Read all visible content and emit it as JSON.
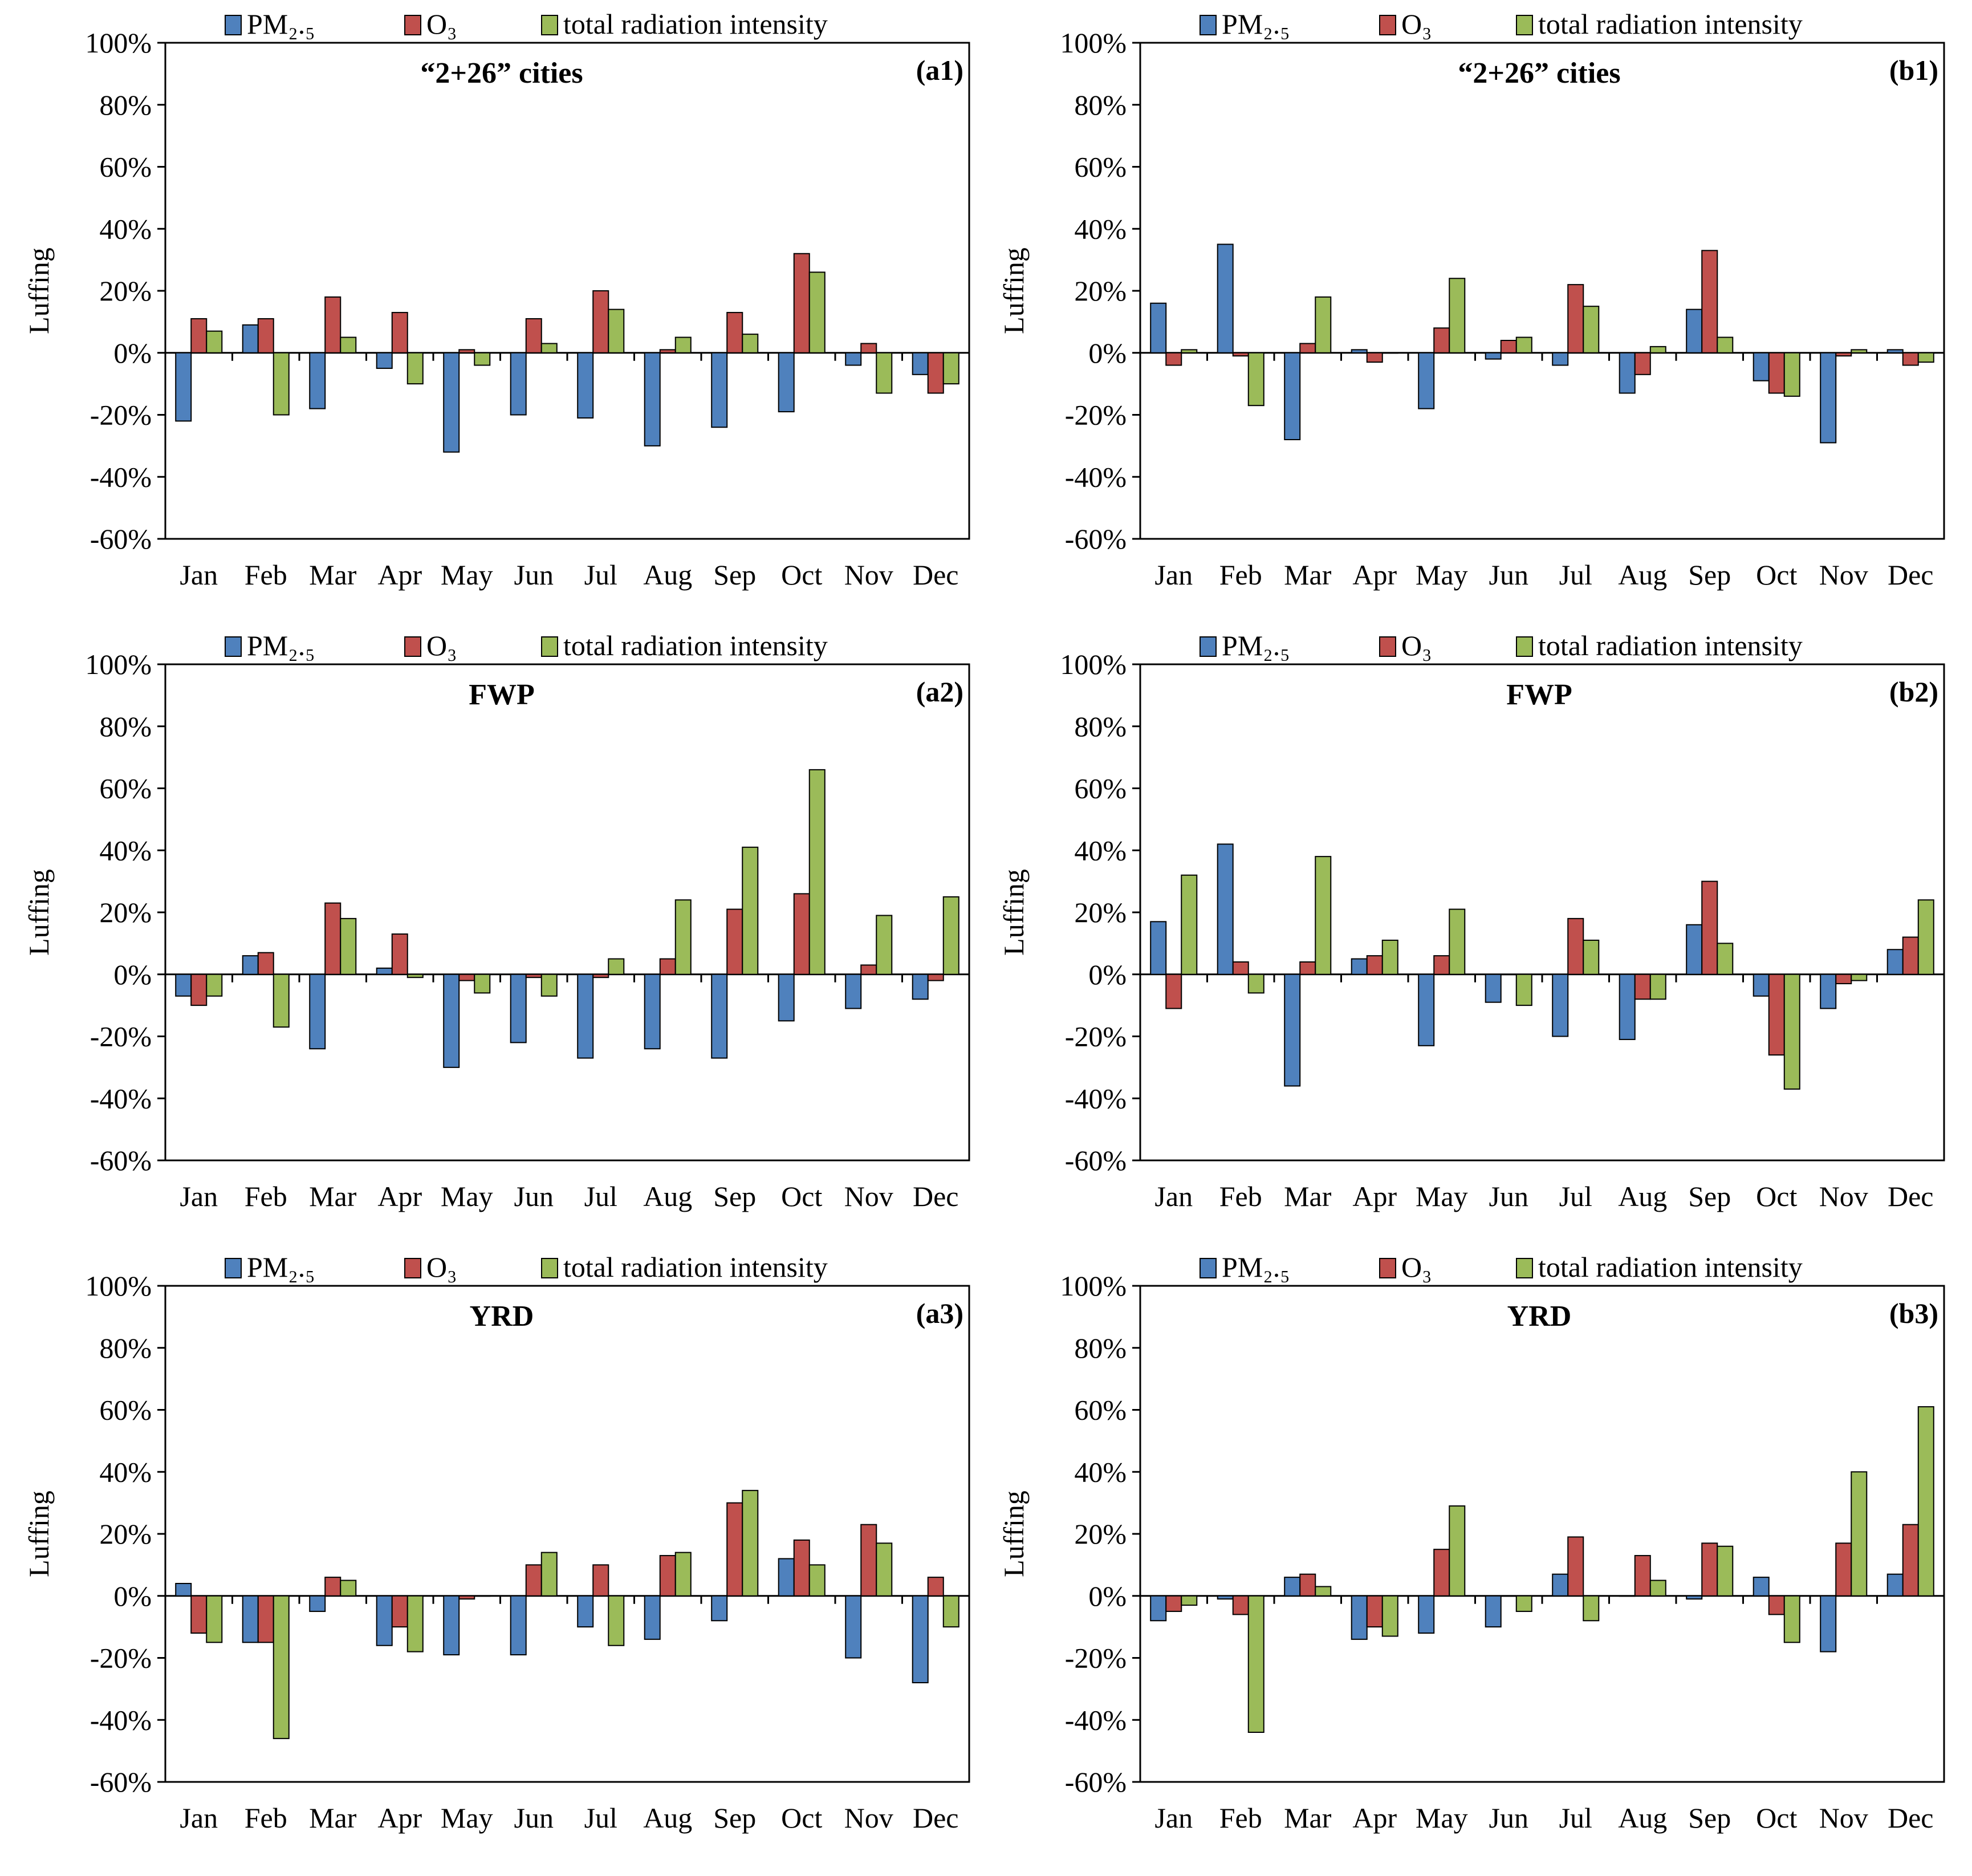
{
  "chart_data": [
    {
      "type": "bar",
      "panel": "(a1)",
      "title": "“2+26” cities",
      "xlabel": "",
      "ylabel": "Luffing",
      "ylim": [
        -60,
        100
      ],
      "y_tick_labels": [
        "100%",
        "80%",
        "60%",
        "40%",
        "20%",
        "0%",
        "-20%",
        "-40%",
        "-60%"
      ],
      "legend_position": "top",
      "categories": [
        "Jan",
        "Feb",
        "Mar",
        "Apr",
        "May",
        "Jun",
        "Jul",
        "Aug",
        "Sep",
        "Oct",
        "Nov",
        "Dec"
      ],
      "series": [
        {
          "name": "PM₂.₅",
          "color": "#4F81BD",
          "values": [
            -22,
            9,
            -18,
            -5,
            -32,
            -20,
            -21,
            -30,
            -24,
            -19,
            -4,
            -7
          ]
        },
        {
          "name": "O₃",
          "color": "#C0504D",
          "values": [
            11,
            11,
            18,
            13,
            1,
            11,
            20,
            1,
            13,
            32,
            3,
            -13
          ]
        },
        {
          "name": "total radiation intensity",
          "color": "#9BBB59",
          "values": [
            7,
            -20,
            5,
            -10,
            -4,
            3,
            14,
            5,
            6,
            26,
            -13,
            -10
          ]
        }
      ]
    },
    {
      "type": "bar",
      "panel": "(b1)",
      "title": "“2+26” cities",
      "xlabel": "",
      "ylabel": "Luffing",
      "ylim": [
        -60,
        100
      ],
      "y_tick_labels": [
        "100%",
        "80%",
        "60%",
        "40%",
        "20%",
        "0%",
        "-20%",
        "-40%",
        "-60%"
      ],
      "legend_position": "top",
      "categories": [
        "Jan",
        "Feb",
        "Mar",
        "Apr",
        "May",
        "Jun",
        "Jul",
        "Aug",
        "Sep",
        "Oct",
        "Nov",
        "Dec"
      ],
      "series": [
        {
          "name": "PM₂.₅",
          "color": "#4F81BD",
          "values": [
            16,
            35,
            -28,
            1,
            -18,
            -2,
            -4,
            -13,
            14,
            -9,
            -29,
            1
          ]
        },
        {
          "name": "O₃",
          "color": "#C0504D",
          "values": [
            -4,
            -1,
            3,
            -3,
            8,
            4,
            22,
            -7,
            33,
            -13,
            -1,
            -4
          ]
        },
        {
          "name": "total radiation intensity",
          "color": "#9BBB59",
          "values": [
            1,
            -17,
            18,
            0,
            24,
            5,
            15,
            2,
            5,
            -14,
            1,
            -3
          ]
        }
      ]
    },
    {
      "type": "bar",
      "panel": "(a2)",
      "title": "FWP",
      "xlabel": "",
      "ylabel": "Luffing",
      "ylim": [
        -60,
        100
      ],
      "y_tick_labels": [
        "100%",
        "80%",
        "60%",
        "40%",
        "20%",
        "0%",
        "-20%",
        "-40%",
        "-60%"
      ],
      "legend_position": "top",
      "categories": [
        "Jan",
        "Feb",
        "Mar",
        "Apr",
        "May",
        "Jun",
        "Jul",
        "Aug",
        "Sep",
        "Oct",
        "Nov",
        "Dec"
      ],
      "series": [
        {
          "name": "PM₂.₅",
          "color": "#4F81BD",
          "values": [
            -7,
            6,
            -24,
            2,
            -30,
            -22,
            -27,
            -24,
            -27,
            -15,
            -11,
            -8
          ]
        },
        {
          "name": "O₃",
          "color": "#C0504D",
          "values": [
            -10,
            7,
            23,
            13,
            -2,
            -1,
            -1,
            5,
            21,
            26,
            3,
            -2
          ]
        },
        {
          "name": "total radiation intensity",
          "color": "#9BBB59",
          "values": [
            -7,
            -17,
            18,
            -1,
            -6,
            -7,
            5,
            24,
            41,
            66,
            19,
            25
          ]
        }
      ]
    },
    {
      "type": "bar",
      "panel": "(b2)",
      "title": "FWP",
      "xlabel": "",
      "ylabel": "Luffing",
      "ylim": [
        -60,
        100
      ],
      "y_tick_labels": [
        "100%",
        "80%",
        "60%",
        "40%",
        "20%",
        "0%",
        "-20%",
        "-40%",
        "-60%"
      ],
      "legend_position": "top",
      "categories": [
        "Jan",
        "Feb",
        "Mar",
        "Apr",
        "May",
        "Jun",
        "Jul",
        "Aug",
        "Sep",
        "Oct",
        "Nov",
        "Dec"
      ],
      "series": [
        {
          "name": "PM₂.₅",
          "color": "#4F81BD",
          "values": [
            17,
            42,
            -36,
            5,
            -23,
            -9,
            -20,
            -21,
            16,
            -7,
            -11,
            8
          ]
        },
        {
          "name": "O₃",
          "color": "#C0504D",
          "values": [
            -11,
            4,
            4,
            6,
            6,
            0,
            18,
            -8,
            30,
            -26,
            -3,
            12
          ]
        },
        {
          "name": "total radiation intensity",
          "color": "#9BBB59",
          "values": [
            32,
            -6,
            38,
            11,
            21,
            -10,
            11,
            -8,
            10,
            -37,
            -2,
            24
          ]
        }
      ]
    },
    {
      "type": "bar",
      "panel": "(a3)",
      "title": "YRD",
      "xlabel": "",
      "ylabel": "Luffing",
      "ylim": [
        -60,
        100
      ],
      "y_tick_labels": [
        "100%",
        "80%",
        "60%",
        "40%",
        "20%",
        "0%",
        "-20%",
        "-40%",
        "-60%"
      ],
      "legend_position": "top",
      "categories": [
        "Jan",
        "Feb",
        "Mar",
        "Apr",
        "May",
        "Jun",
        "Jul",
        "Aug",
        "Sep",
        "Oct",
        "Nov",
        "Dec"
      ],
      "series": [
        {
          "name": "PM₂.₅",
          "color": "#4F81BD",
          "values": [
            4,
            -15,
            -5,
            -16,
            -19,
            -19,
            -10,
            -14,
            -8,
            12,
            -20,
            -28
          ]
        },
        {
          "name": "O₃",
          "color": "#C0504D",
          "values": [
            -12,
            -15,
            6,
            -10,
            -1,
            10,
            10,
            13,
            30,
            18,
            23,
            6
          ]
        },
        {
          "name": "total radiation intensity",
          "color": "#9BBB59",
          "values": [
            -15,
            -46,
            5,
            -18,
            0,
            14,
            -16,
            14,
            34,
            10,
            17,
            -10
          ]
        }
      ]
    },
    {
      "type": "bar",
      "panel": "(b3)",
      "title": "YRD",
      "xlabel": "",
      "ylabel": "Luffing",
      "ylim": [
        -60,
        100
      ],
      "y_tick_labels": [
        "100%",
        "80%",
        "60%",
        "40%",
        "20%",
        "0%",
        "-20%",
        "-40%",
        "-60%"
      ],
      "legend_position": "top",
      "categories": [
        "Jan",
        "Feb",
        "Mar",
        "Apr",
        "May",
        "Jun",
        "Jul",
        "Aug",
        "Sep",
        "Oct",
        "Nov",
        "Dec"
      ],
      "series": [
        {
          "name": "PM₂.₅",
          "color": "#4F81BD",
          "values": [
            -8,
            -1,
            6,
            -14,
            -12,
            -10,
            7,
            0,
            -1,
            6,
            -18,
            7
          ]
        },
        {
          "name": "O₃",
          "color": "#C0504D",
          "values": [
            -5,
            -6,
            7,
            -10,
            15,
            0,
            19,
            13,
            17,
            -6,
            17,
            23
          ]
        },
        {
          "name": "total radiation intensity",
          "color": "#9BBB59",
          "values": [
            -3,
            -44,
            3,
            -13,
            29,
            -5,
            -8,
            5,
            16,
            -15,
            40,
            61
          ]
        }
      ]
    }
  ]
}
